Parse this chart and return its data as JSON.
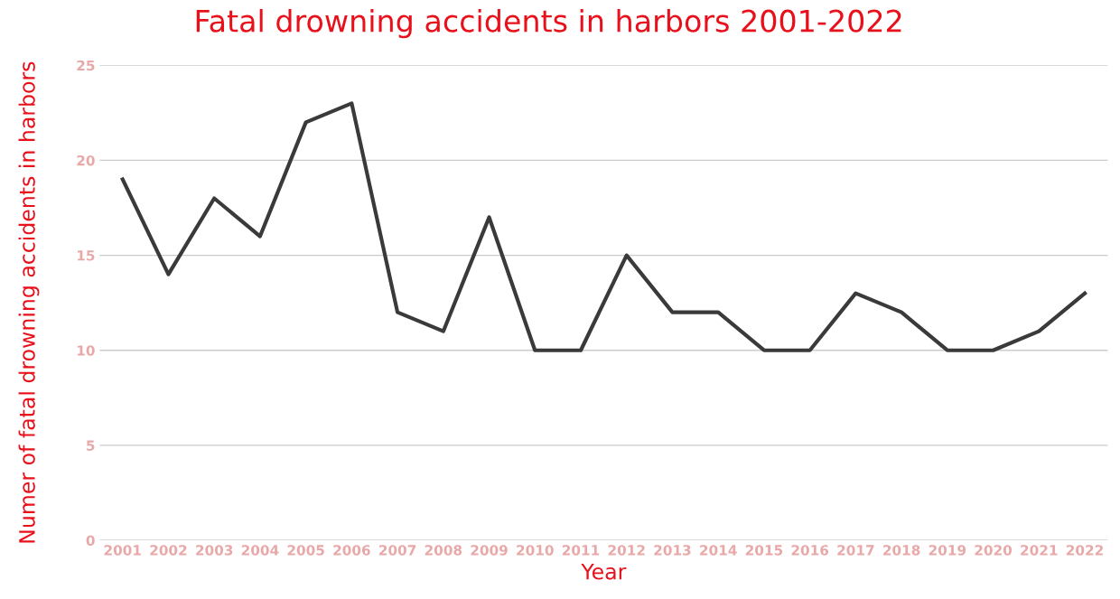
{
  "chart_data": {
    "type": "line",
    "title": "Fatal drowning accidents in harbors 2001-2022",
    "xlabel": "Year",
    "ylabel": "Numer of fatal drowning accidents in harbors",
    "categories": [
      "2001",
      "2002",
      "2003",
      "2004",
      "2005",
      "2006",
      "2007",
      "2008",
      "2009",
      "2010",
      "2011",
      "2012",
      "2013",
      "2014",
      "2015",
      "2016",
      "2017",
      "2018",
      "2019",
      "2020",
      "2021",
      "2022"
    ],
    "series": [
      {
        "color": "#3a3a3a",
        "values": [
          19,
          14,
          18,
          16,
          22,
          23,
          12,
          11,
          17,
          10,
          10,
          15,
          12,
          12,
          10,
          10,
          13,
          12,
          10,
          10,
          11,
          13
        ]
      }
    ],
    "ylim": [
      0,
      25
    ],
    "yticks": [
      0,
      5,
      10,
      15,
      20,
      25
    ],
    "grid": "y",
    "marker": "none",
    "line_style": "solid"
  }
}
